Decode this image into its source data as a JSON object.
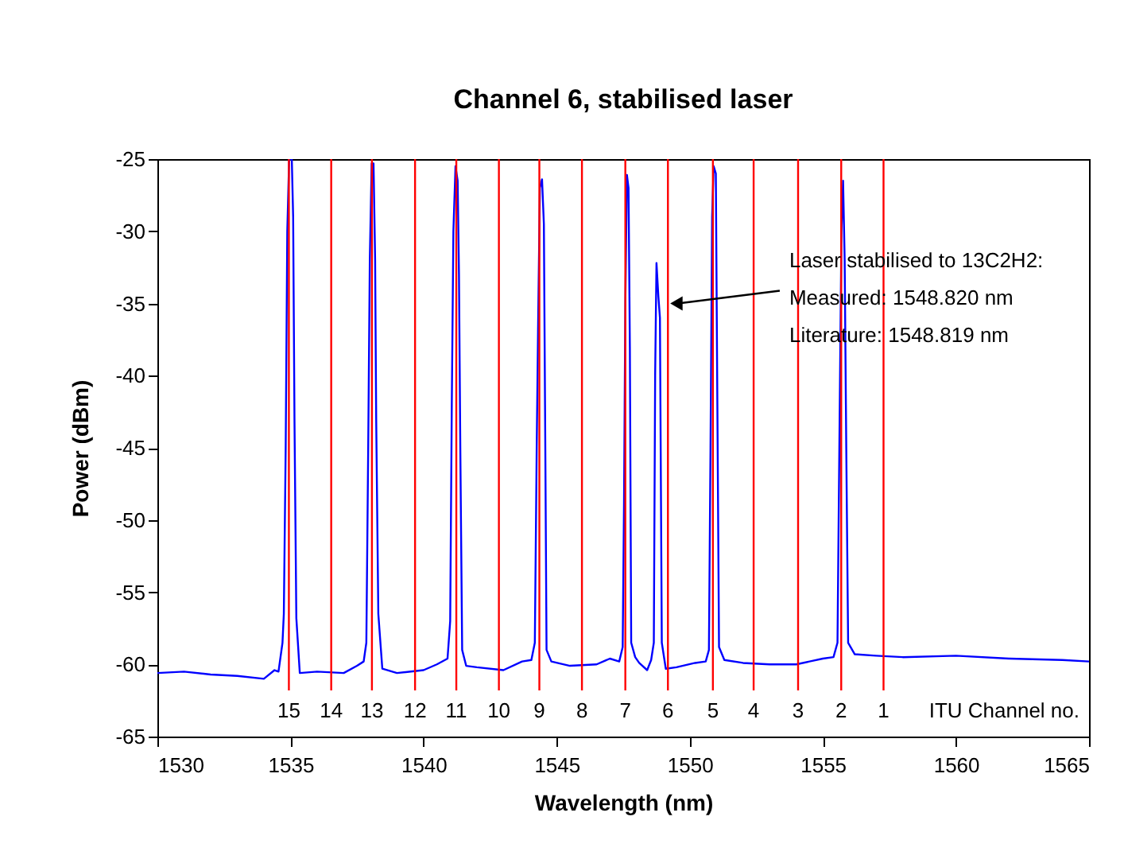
{
  "chart_data": {
    "type": "line",
    "title": "Channel 6, stabilised laser",
    "xlabel": "Wavelength (nm)",
    "ylabel": "Power (dBm)",
    "xlim": [
      1530,
      1565
    ],
    "xticks": [
      1530,
      1535,
      1540,
      1545,
      1550,
      1555,
      1560,
      1565
    ],
    "ylim": [
      -65,
      -25
    ],
    "yticks": [
      -65,
      -60,
      -55,
      -50,
      -45,
      -40,
      -35,
      -30,
      -25
    ],
    "grid": false,
    "marker": "none",
    "line_style": "solid",
    "x": [
      1530,
      1531,
      1532,
      1533,
      1534,
      1534.4,
      1534.55,
      1534.7,
      1534.75,
      1534.82,
      1534.88,
      1534.95,
      1535.05,
      1535.1,
      1535.15,
      1535.22,
      1535.35,
      1536,
      1537,
      1537.5,
      1537.75,
      1537.85,
      1537.92,
      1537.98,
      1538.05,
      1538.12,
      1538.18,
      1538.22,
      1538.3,
      1538.45,
      1539,
      1540,
      1540.5,
      1540.9,
      1541,
      1541.06,
      1541.12,
      1541.2,
      1541.28,
      1541.33,
      1541.38,
      1541.45,
      1541.6,
      1542,
      1543,
      1543.7,
      1544.05,
      1544.18,
      1544.25,
      1544.3,
      1544.37,
      1544.45,
      1544.52,
      1544.58,
      1544.62,
      1544.8,
      1545.5,
      1546.5,
      1547,
      1547.35,
      1547.48,
      1547.53,
      1547.58,
      1547.64,
      1547.7,
      1547.75,
      1547.8,
      1547.95,
      1548.1,
      1548.4,
      1548.55,
      1548.65,
      1548.7,
      1548.75,
      1548.82,
      1548.88,
      1548.95,
      1549.1,
      1549.5,
      1550.2,
      1550.6,
      1550.72,
      1550.78,
      1550.84,
      1550.9,
      1550.98,
      1551.03,
      1551.1,
      1551.3,
      1552,
      1553,
      1554,
      1555,
      1555.4,
      1555.55,
      1555.62,
      1555.7,
      1555.76,
      1555.82,
      1555.88,
      1555.95,
      1556.2,
      1557,
      1558,
      1560,
      1562,
      1564,
      1565
    ],
    "series": [
      {
        "color": "#0000ff",
        "values": [
          -60.6,
          -60.5,
          -60.7,
          -60.8,
          -61.0,
          -60.4,
          -60.5,
          -58.5,
          -56.5,
          -45,
          -30,
          -25,
          -25,
          -29,
          -43,
          -56.8,
          -60.6,
          -60.5,
          -60.6,
          -60.1,
          -59.8,
          -58.5,
          -45,
          -32,
          -25.3,
          -25.3,
          -32,
          -43,
          -56.5,
          -60.3,
          -60.6,
          -60.4,
          -60.0,
          -59.6,
          -57,
          -42,
          -30,
          -25.5,
          -26.5,
          -33,
          -45,
          -59,
          -60.1,
          -60.2,
          -60.4,
          -59.8,
          -59.7,
          -58.5,
          -45,
          -37,
          -27,
          -26.4,
          -29.5,
          -47,
          -59,
          -59.8,
          -60.1,
          -60.0,
          -59.6,
          -59.8,
          -58.8,
          -49,
          -35,
          -26.1,
          -27,
          -38,
          -58.5,
          -59.5,
          -59.9,
          -60.4,
          -59.7,
          -58.5,
          -40,
          -32.2,
          -34.5,
          -36,
          -58.5,
          -60.3,
          -60.2,
          -59.9,
          -59.8,
          -59,
          -45,
          -29,
          -25.5,
          -26,
          -40,
          -58.8,
          -59.7,
          -59.9,
          -60.0,
          -60.0,
          -59.6,
          -59.5,
          -58.5,
          -45,
          -30,
          -26.5,
          -32,
          -45,
          -58.5,
          -59.3,
          -59.4,
          -59.5,
          -59.4,
          -59.6,
          -59.7,
          -59.8
        ]
      }
    ],
    "ref_lines": [
      {
        "axis": "x",
        "value": 1534.94,
        "color": "#ff0000"
      },
      {
        "axis": "x",
        "value": 1536.53,
        "color": "#ff0000"
      },
      {
        "axis": "x",
        "value": 1538.06,
        "color": "#ff0000"
      },
      {
        "axis": "x",
        "value": 1539.68,
        "color": "#ff0000"
      },
      {
        "axis": "x",
        "value": 1541.23,
        "color": "#ff0000"
      },
      {
        "axis": "x",
        "value": 1542.83,
        "color": "#ff0000"
      },
      {
        "axis": "x",
        "value": 1544.35,
        "color": "#ff0000"
      },
      {
        "axis": "x",
        "value": 1545.95,
        "color": "#ff0000"
      },
      {
        "axis": "x",
        "value": 1547.58,
        "color": "#ff0000"
      },
      {
        "axis": "x",
        "value": 1549.18,
        "color": "#ff0000"
      },
      {
        "axis": "x",
        "value": 1550.87,
        "color": "#ff0000"
      },
      {
        "axis": "x",
        "value": 1552.4,
        "color": "#ff0000"
      },
      {
        "axis": "x",
        "value": 1554.07,
        "color": "#ff0000"
      },
      {
        "axis": "x",
        "value": 1555.69,
        "color": "#ff0000"
      },
      {
        "axis": "x",
        "value": 1557.28,
        "color": "#ff0000"
      }
    ],
    "annotations": [
      {
        "text": "Laser stabilised to 13C2H2:\nMeasured: 1548.820 nm\nLiterature:  1548.819 nm",
        "x": 1549.2,
        "y": -35
      },
      "15",
      "14",
      "13",
      "12",
      "11",
      "10",
      "9",
      "8",
      "7",
      "6",
      "5",
      "4",
      "3",
      "2",
      "1",
      "ITU Channel no."
    ]
  }
}
